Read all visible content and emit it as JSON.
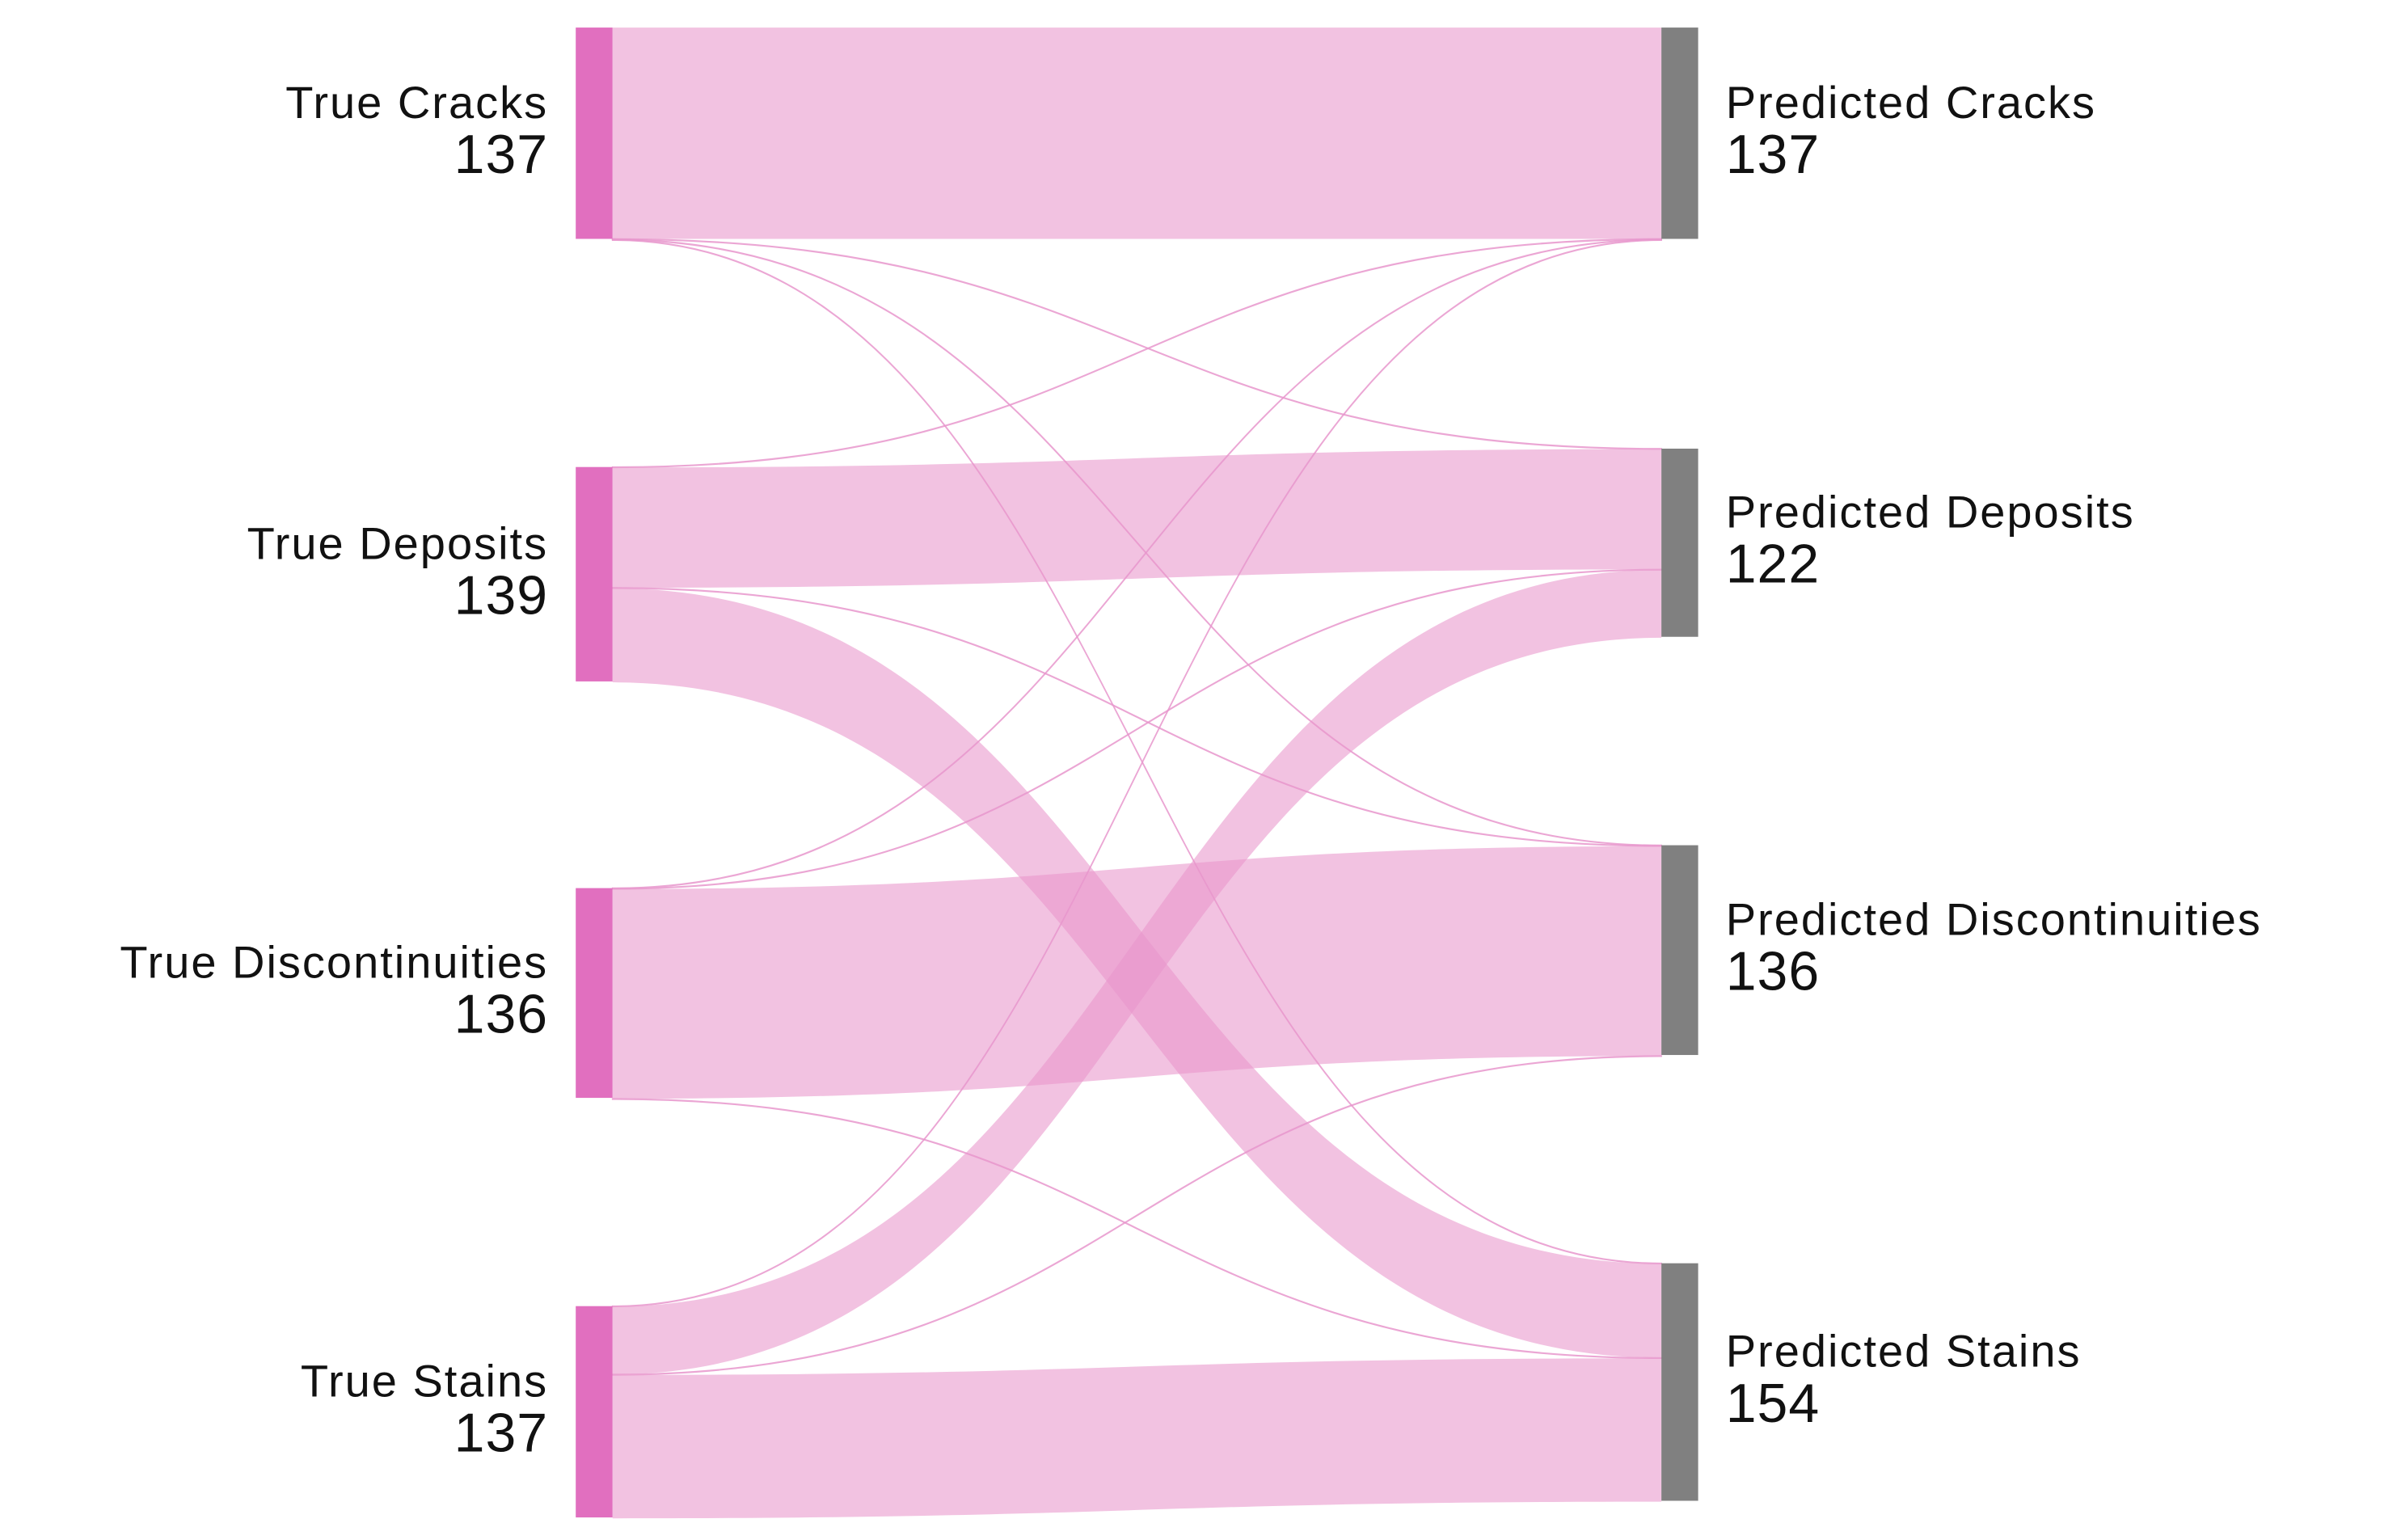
{
  "chart_data": {
    "type": "sankey",
    "colors": {
      "source_node": "#e16fbf",
      "target_node": "#808080",
      "flow": "#e896cc"
    },
    "sources": [
      {
        "label": "True Cracks",
        "value": 137
      },
      {
        "label": "True Deposits",
        "value": 139
      },
      {
        "label": "True Discontinuities",
        "value": 136
      },
      {
        "label": "True Stains",
        "value": 137
      }
    ],
    "targets": [
      {
        "label": "Predicted Cracks",
        "value": 137
      },
      {
        "label": "Predicted Deposits",
        "value": 122
      },
      {
        "label": "Predicted Discontinuities",
        "value": 136
      },
      {
        "label": "Predicted Stains",
        "value": 154
      }
    ],
    "flows": [
      {
        "source": 0,
        "target": 0,
        "value": 137
      },
      {
        "source": 0,
        "target": 1,
        "value": 0.3
      },
      {
        "source": 0,
        "target": 2,
        "value": 0.3
      },
      {
        "source": 0,
        "target": 3,
        "value": 0.3
      },
      {
        "source": 1,
        "target": 0,
        "value": 0.3
      },
      {
        "source": 1,
        "target": 1,
        "value": 78
      },
      {
        "source": 1,
        "target": 2,
        "value": 0.3
      },
      {
        "source": 1,
        "target": 3,
        "value": 61
      },
      {
        "source": 2,
        "target": 0,
        "value": 0.3
      },
      {
        "source": 2,
        "target": 1,
        "value": 0.3
      },
      {
        "source": 2,
        "target": 2,
        "value": 136
      },
      {
        "source": 2,
        "target": 3,
        "value": 0.3
      },
      {
        "source": 3,
        "target": 0,
        "value": 0.3
      },
      {
        "source": 3,
        "target": 1,
        "value": 44
      },
      {
        "source": 3,
        "target": 2,
        "value": 0.3
      },
      {
        "source": 3,
        "target": 3,
        "value": 93
      }
    ]
  }
}
